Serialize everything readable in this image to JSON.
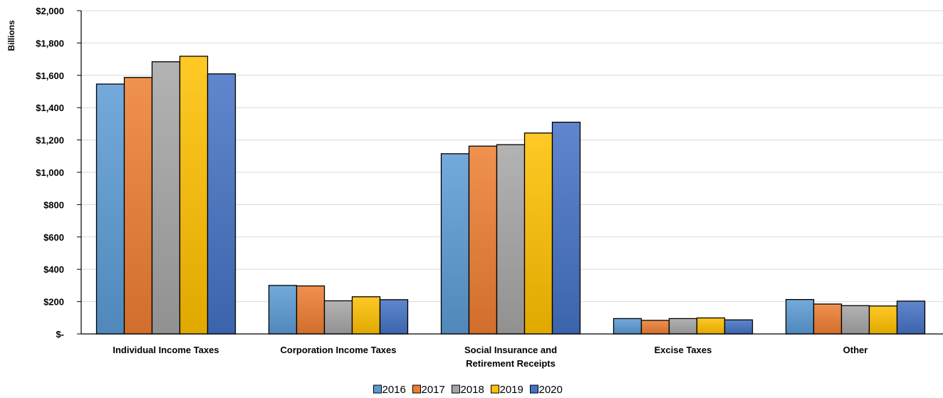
{
  "chart_data": {
    "type": "bar",
    "title": "",
    "ylabel": "Billions",
    "xlabel": "",
    "ylim": [
      0,
      2000
    ],
    "ytick_labels": [
      "$-",
      "$200",
      "$400",
      "$600",
      "$800",
      "$1,000",
      "$1,200",
      "$1,400",
      "$1,600",
      "$1,800",
      "$2,000"
    ],
    "grid": true,
    "legend_position": "bottom",
    "categories": [
      [
        "Individual Income Taxes"
      ],
      [
        "Corporation Income Taxes"
      ],
      [
        "Social Insurance and",
        "Retirement Receipts"
      ],
      [
        "Excise Taxes"
      ],
      [
        "Other"
      ]
    ],
    "series": [
      {
        "name": "2016",
        "color": "#5B9BD5",
        "values": [
          1546,
          300,
          1115,
          95,
          213
        ]
      },
      {
        "name": "2017",
        "color": "#ED7D31",
        "values": [
          1587,
          297,
          1162,
          84,
          185
        ]
      },
      {
        "name": "2018",
        "color": "#A5A5A5",
        "values": [
          1684,
          205,
          1171,
          95,
          175
        ]
      },
      {
        "name": "2019",
        "color": "#FFC000",
        "values": [
          1718,
          230,
          1243,
          99,
          173
        ]
      },
      {
        "name": "2020",
        "color": "#4472C4",
        "values": [
          1609,
          212,
          1310,
          87,
          203
        ]
      }
    ]
  }
}
